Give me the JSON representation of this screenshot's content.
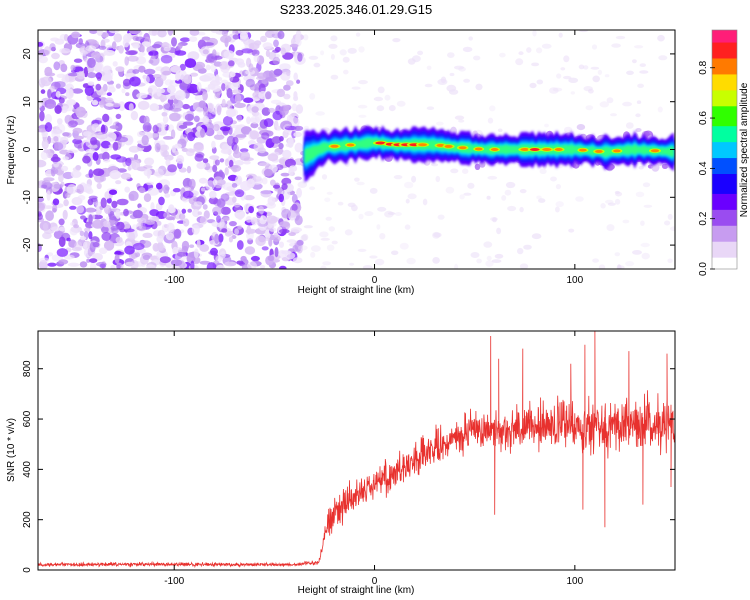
{
  "title": "S233.2025.346.01.29.G15",
  "chart_data": [
    {
      "type": "heatmap",
      "title": "S233.2025.346.01.29.G15",
      "xlabel": "Height of straight line (km)",
      "ylabel": "Frequency (Hz)",
      "xlim": [
        -168,
        150
      ],
      "ylim": [
        -25,
        25
      ],
      "x_ticks": [
        -100,
        0,
        100
      ],
      "x_tick_labels": [
        "-100",
        "0",
        "100"
      ],
      "y_ticks": [
        -20,
        -10,
        0,
        10,
        20
      ],
      "y_tick_labels": [
        "-20",
        "-10",
        "0",
        "10",
        "20"
      ],
      "signal_onset_km": -35,
      "noise_region_km": [
        -168,
        -37
      ],
      "colorbar": {
        "label": "Normalized spectral amplitude",
        "range": [
          0,
          0.95
        ],
        "ticks": [
          0.0,
          0.2,
          0.4,
          0.6,
          0.8
        ],
        "tick_labels": [
          "0.0",
          "0.2",
          "0.4",
          "0.6",
          "0.8"
        ],
        "colors": [
          "#ffffff",
          "#e9d7f7",
          "#c79cf0",
          "#9a4cf0",
          "#6a00ff",
          "#1a00ff",
          "#0050ff",
          "#00c8ff",
          "#00ffa0",
          "#30ff00",
          "#c8ff00",
          "#ffdc00",
          "#ff7a00",
          "#ff2020",
          "#ff1e78"
        ]
      },
      "ridge_centerline_hz": [
        {
          "x": -35,
          "y": -1.5
        },
        {
          "x": -25,
          "y": 0.5
        },
        {
          "x": -10,
          "y": 1
        },
        {
          "x": 0,
          "y": 1.5
        },
        {
          "x": 10,
          "y": 1
        },
        {
          "x": 20,
          "y": 1
        },
        {
          "x": 30,
          "y": 1
        },
        {
          "x": 40,
          "y": 0.5
        },
        {
          "x": 55,
          "y": 0
        },
        {
          "x": 70,
          "y": 0
        },
        {
          "x": 85,
          "y": 0
        },
        {
          "x": 100,
          "y": 0
        },
        {
          "x": 115,
          "y": -0.5
        },
        {
          "x": 130,
          "y": 0
        },
        {
          "x": 150,
          "y": -0.5
        }
      ]
    },
    {
      "type": "line",
      "xlabel": "Height of straight line (km)",
      "ylabel": "SNR (10 * v/v)",
      "xlim": [
        -168,
        150
      ],
      "ylim": [
        0,
        950
      ],
      "x_ticks": [
        -100,
        0,
        100
      ],
      "x_tick_labels": [
        "-100",
        "0",
        "100"
      ],
      "y_ticks": [
        0,
        200,
        400,
        600,
        800
      ],
      "y_tick_labels": [
        "0",
        "200",
        "400",
        "600",
        "800"
      ],
      "series": [
        {
          "name": "SNR",
          "color": "#e8312e",
          "envelope": [
            {
              "x": -168,
              "mean": 22,
              "spread": 8
            },
            {
              "x": -40,
              "mean": 22,
              "spread": 8
            },
            {
              "x": -28,
              "mean": 30,
              "spread": 10
            },
            {
              "x": -23,
              "mean": 200,
              "spread": 70
            },
            {
              "x": -10,
              "mean": 300,
              "spread": 70
            },
            {
              "x": 10,
              "mean": 390,
              "spread": 70
            },
            {
              "x": 30,
              "mean": 480,
              "spread": 75
            },
            {
              "x": 50,
              "mean": 560,
              "spread": 80
            },
            {
              "x": 70,
              "mean": 560,
              "spread": 90
            },
            {
              "x": 90,
              "mean": 575,
              "spread": 100
            },
            {
              "x": 110,
              "mean": 580,
              "spread": 110
            },
            {
              "x": 130,
              "mean": 575,
              "spread": 110
            },
            {
              "x": 150,
              "mean": 575,
              "spread": 110
            }
          ],
          "peaks": [
            {
              "x": 58,
              "y": 930
            },
            {
              "x": 74,
              "y": 880
            },
            {
              "x": 105,
              "y": 895
            },
            {
              "x": 110,
              "y": 950
            },
            {
              "x": 127,
              "y": 870
            },
            {
              "x": 146,
              "y": 860
            },
            {
              "x": 62,
              "y": 840
            },
            {
              "x": 98,
              "y": 820
            }
          ],
          "troughs": [
            {
              "x": 60,
              "y": 220
            },
            {
              "x": 115,
              "y": 170
            },
            {
              "x": 104,
              "y": 240
            },
            {
              "x": 134,
              "y": 260
            },
            {
              "x": 148,
              "y": 330
            }
          ]
        }
      ]
    }
  ]
}
